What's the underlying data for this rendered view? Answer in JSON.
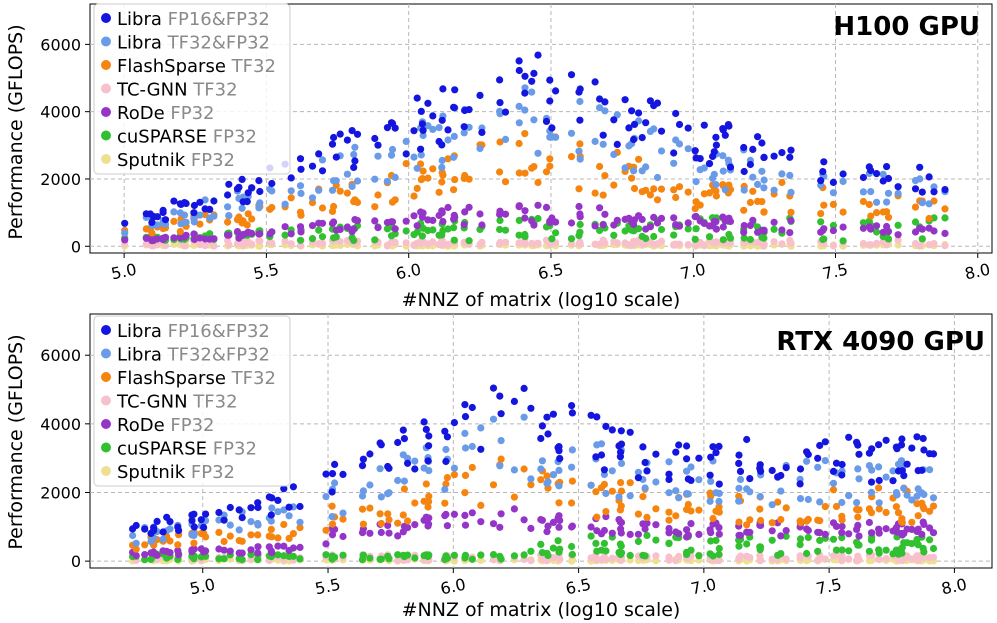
{
  "chart_data": [
    {
      "type": "scatter",
      "title": "H100 GPU",
      "xlabel": "#NNZ of matrix (log10 scale)",
      "ylabel": "Performance (GFLOPS)",
      "xlim": [
        4.88,
        8.05
      ],
      "ylim": [
        -200,
        7200
      ],
      "x_ticks": [
        "5.0",
        "5.5",
        "6.0",
        "6.5",
        "7.0",
        "7.5",
        "8.0"
      ],
      "x_tick_values": [
        5.0,
        5.5,
        6.0,
        6.5,
        7.0,
        7.5,
        8.0
      ],
      "y_ticks": [
        "0",
        "2000",
        "4000",
        "6000"
      ],
      "y_tick_values": [
        0,
        2000,
        4000,
        6000
      ],
      "grid": true,
      "legend_position": "top-left",
      "series": [
        {
          "name": "Libra",
          "suffix": "FP16&FP32",
          "color": "#1515e0",
          "key": "libra16"
        },
        {
          "name": "Libra",
          "suffix": "TF32&FP32",
          "color": "#6a9be8",
          "key": "libra32"
        },
        {
          "name": "FlashSparse",
          "suffix": "TF32",
          "color": "#f5850f",
          "key": "flash"
        },
        {
          "name": "TC-GNN",
          "suffix": "TF32",
          "color": "#f7c0cc",
          "key": "tcgnn"
        },
        {
          "name": "RoDe",
          "suffix": "FP32",
          "color": "#9535c8",
          "key": "rode"
        },
        {
          "name": "cuSPARSE",
          "suffix": "FP32",
          "color": "#30c030",
          "key": "cusparse"
        },
        {
          "name": "Sputnik",
          "suffix": "FP32",
          "color": "#eee090",
          "key": "sputnik"
        }
      ]
    },
    {
      "type": "scatter",
      "title": "RTX 4090 GPU",
      "xlabel": "#NNZ of matrix (log10 scale)",
      "ylabel": "Performance (GFLOPS)",
      "xlim": [
        4.55,
        8.15
      ],
      "ylim": [
        -200,
        7200
      ],
      "x_ticks": [
        "5.0",
        "5.5",
        "6.0",
        "6.5",
        "7.0",
        "7.5",
        "8.0"
      ],
      "x_tick_values": [
        5.0,
        5.5,
        6.0,
        6.5,
        7.0,
        7.5,
        8.0
      ],
      "y_ticks": [
        "0",
        "2000",
        "4000",
        "6000"
      ],
      "y_tick_values": [
        0,
        2000,
        4000,
        6000
      ],
      "grid": true,
      "legend_position": "top-left",
      "series": [
        {
          "name": "Libra",
          "suffix": "FP16&FP32",
          "color": "#1515e0",
          "key": "libra16"
        },
        {
          "name": "Libra",
          "suffix": "TF32&FP32",
          "color": "#6a9be8",
          "key": "libra32"
        },
        {
          "name": "FlashSparse",
          "suffix": "TF32",
          "color": "#f5850f",
          "key": "flash"
        },
        {
          "name": "TC-GNN",
          "suffix": "TF32",
          "color": "#f7c0cc",
          "key": "tcgnn"
        },
        {
          "name": "RoDe",
          "suffix": "FP32",
          "color": "#9535c8",
          "key": "rode"
        },
        {
          "name": "cuSPARSE",
          "suffix": "FP32",
          "color": "#30c030",
          "key": "cusparse"
        },
        {
          "name": "Sputnik",
          "suffix": "FP32",
          "color": "#eee090",
          "key": "sputnik"
        }
      ]
    }
  ]
}
